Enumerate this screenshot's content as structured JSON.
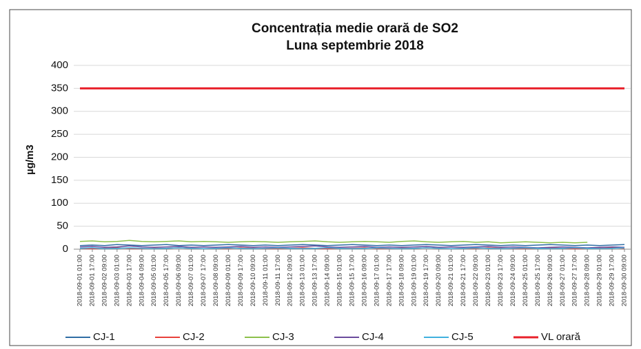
{
  "chart_data": {
    "type": "line",
    "title": "Concentrația medie orară de SO2",
    "subtitle": "Luna septembrie 2018",
    "y_label": "µg/m3",
    "categories": [
      "2018-09-01 01:00",
      "2018-09-01 17:00",
      "2018-09-02 09:00",
      "2018-09-03 01:00",
      "2018-09-03 17:00",
      "2018-09-04 09:00",
      "2018-09-05 01:00",
      "2018-09-05 17:00",
      "2018-09-06 09:00",
      "2018-09-07 01:00",
      "2018-09-07 17:00",
      "2018-09-08 09:00",
      "2018-09-09 01:00",
      "2018-09-09 17:00",
      "2018-09-10 09:00",
      "2018-09-11 01:00",
      "2018-09-11 17:00",
      "2018-09-12 09:00",
      "2018-09-13 01:00",
      "2018-09-13 17:00",
      "2018-09-14 09:00",
      "2018-09-15 01:00",
      "2018-09-15 17:00",
      "2018-09-16 09:00",
      "2018-09-17 01:00",
      "2018-09-17 17:00",
      "2018-09-18 09:00",
      "2018-09-19 01:00",
      "2018-09-19 17:00",
      "2018-09-20 09:00",
      "2018-09-21 01:00",
      "2018-09-21 17:00",
      "2018-09-22 09:00",
      "2018-09-23 01:00",
      "2018-09-23 17:00",
      "2018-09-24 09:00",
      "2018-09-25 01:00",
      "2018-09-25 17:00",
      "2018-09-26 09:00",
      "2018-09-27 01:00",
      "2018-09-27 17:00",
      "2018-09-28 09:00",
      "2018-09-29 01:00",
      "2018-09-29 17:00",
      "2018-09-30 09:00"
    ],
    "series": [
      {
        "name": "CJ-1",
        "color": "#2e6da4",
        "values": [
          8,
          9,
          8,
          10,
          9,
          8,
          9,
          10,
          8,
          9,
          8,
          9,
          10,
          9,
          8,
          9,
          8,
          9,
          10,
          9,
          8,
          9,
          10,
          9,
          8,
          9,
          8,
          9,
          10,
          9,
          8,
          9,
          10,
          9,
          8,
          9,
          8,
          9,
          10,
          9,
          8,
          9,
          8,
          9,
          10
        ]
      },
      {
        "name": "CJ-2",
        "color": "#e8403a",
        "values": [
          2,
          1,
          2,
          3,
          2,
          1,
          2,
          2,
          3,
          2,
          1,
          2,
          2,
          3,
          2,
          1,
          2,
          2,
          3,
          2,
          1,
          2,
          2,
          3,
          2,
          1,
          2,
          2,
          3,
          2,
          1,
          2,
          2,
          3,
          2,
          1,
          2,
          2,
          3,
          2,
          1,
          2,
          2,
          3,
          2
        ]
      },
      {
        "name": "CJ-3",
        "color": "#8cc04a",
        "values": [
          17,
          18,
          16,
          17,
          19,
          17,
          16,
          17,
          18,
          16,
          17,
          16,
          15,
          16,
          17,
          16,
          15,
          16,
          17,
          18,
          16,
          15,
          16,
          17,
          16,
          15,
          17,
          18,
          16,
          15,
          16,
          17,
          15,
          16,
          14,
          15,
          16,
          15,
          14,
          15,
          14,
          15,
          null,
          null,
          null
        ]
      },
      {
        "name": "CJ-4",
        "color": "#6a4a9c",
        "values": [
          5,
          6,
          4,
          5,
          7,
          5,
          4,
          5,
          6,
          4,
          5,
          4,
          5,
          6,
          4,
          5,
          4,
          5,
          6,
          7,
          5,
          4,
          5,
          6,
          4,
          5,
          4,
          5,
          6,
          4,
          5,
          4,
          5,
          6,
          4,
          5,
          4,
          3,
          4,
          5,
          4,
          3,
          4,
          5,
          4
        ]
      },
      {
        "name": "CJ-5",
        "color": "#3fb0de",
        "values": [
          2,
          3,
          1,
          2,
          3,
          2,
          1,
          2,
          3,
          2,
          1,
          2,
          3,
          2,
          1,
          2,
          3,
          2,
          1,
          2,
          3,
          2,
          1,
          2,
          3,
          2,
          1,
          2,
          3,
          2,
          1,
          2,
          3,
          2,
          1,
          2,
          3,
          2,
          1,
          2,
          3,
          2,
          1,
          2,
          3
        ]
      },
      {
        "name": "VL orară",
        "color": "#e8202a",
        "width": 3,
        "values": [
          350,
          350,
          350,
          350,
          350,
          350,
          350,
          350,
          350,
          350,
          350,
          350,
          350,
          350,
          350,
          350,
          350,
          350,
          350,
          350,
          350,
          350,
          350,
          350,
          350,
          350,
          350,
          350,
          350,
          350,
          350,
          350,
          350,
          350,
          350,
          350,
          350,
          350,
          350,
          350,
          350,
          350,
          350,
          350,
          350
        ]
      }
    ],
    "ylim": [
      0,
      400
    ],
    "yticks": [
      0,
      50,
      100,
      150,
      200,
      250,
      300,
      350,
      400
    ],
    "grid": true,
    "legend": "bottom"
  }
}
